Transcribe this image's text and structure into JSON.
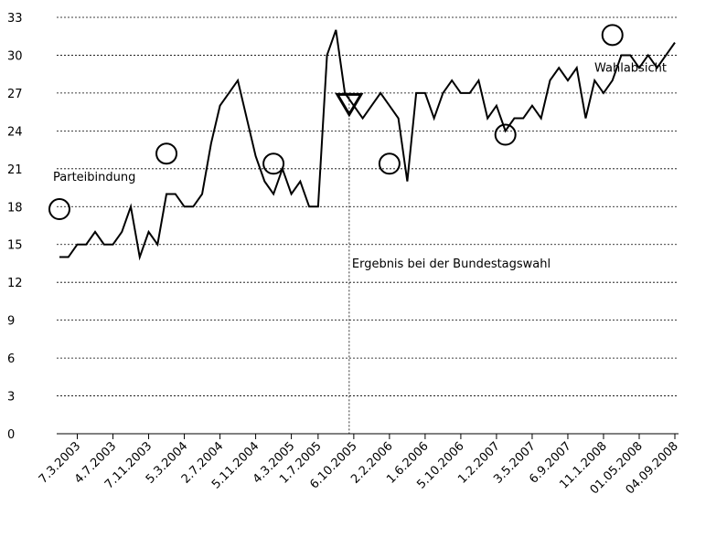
{
  "chart_data": {
    "type": "line",
    "categories": [
      null,
      null,
      "7.3.2003",
      null,
      null,
      null,
      "4.7.2003",
      null,
      null,
      null,
      "7.11.2003",
      null,
      null,
      null,
      "5.3.2004",
      null,
      null,
      null,
      "2.7.2004",
      null,
      null,
      null,
      "5.11.2004",
      null,
      null,
      null,
      "4.3.2005",
      null,
      null,
      "1.7.2005",
      null,
      null,
      null,
      "6.10.2005",
      null,
      null,
      null,
      "2.2.2006",
      null,
      null,
      null,
      "1.6.2006",
      null,
      null,
      null,
      "5.10.2006",
      null,
      null,
      null,
      "1.2.2007",
      null,
      null,
      null,
      "3.5.2007",
      null,
      null,
      null,
      "6.9.2007",
      null,
      null,
      null,
      "11.1.2008",
      null,
      null,
      null,
      "01.05.2008",
      null,
      null,
      null,
      "04.09.2008"
    ],
    "series": [
      {
        "name": "Wahlabsicht",
        "color": "#000000",
        "marker": "line",
        "values": [
          14,
          14,
          15,
          15,
          16,
          15,
          15,
          16,
          18,
          14,
          16,
          15,
          19,
          19,
          18,
          18,
          19,
          23,
          26,
          27,
          28,
          25,
          22,
          20,
          19,
          21,
          19,
          20,
          18,
          18,
          30,
          32,
          27,
          26,
          25,
          26,
          27,
          26,
          25,
          20,
          27,
          27,
          25,
          27,
          28,
          27,
          27,
          28,
          25,
          26,
          24,
          25,
          25,
          26,
          25,
          28,
          29,
          28,
          29,
          25,
          28,
          27,
          28,
          30,
          30,
          29,
          30,
          29,
          30,
          31
        ]
      },
      {
        "name": "Parteibindung",
        "color": "#000000",
        "marker": "circle",
        "values": [
          17.8,
          null,
          null,
          null,
          null,
          null,
          null,
          null,
          null,
          null,
          null,
          null,
          22.2,
          null,
          null,
          null,
          null,
          null,
          null,
          null,
          null,
          null,
          null,
          null,
          21.4,
          null,
          null,
          null,
          null,
          null,
          null,
          null,
          null,
          null,
          null,
          null,
          null,
          21.4,
          null,
          null,
          null,
          null,
          null,
          null,
          null,
          null,
          null,
          null,
          null,
          null,
          23.7,
          null,
          null,
          null,
          null,
          null,
          null,
          null,
          null,
          null,
          null,
          null,
          31.6,
          null,
          null,
          null,
          null,
          null,
          null,
          null
        ]
      },
      {
        "name": "Ergebnis bei der Bundestagswahl",
        "color": "#000000",
        "marker": "triangle",
        "values": [
          null,
          null,
          null,
          null,
          null,
          null,
          null,
          null,
          null,
          null,
          null,
          null,
          null,
          null,
          null,
          null,
          null,
          null,
          null,
          null,
          null,
          null,
          null,
          null,
          null,
          null,
          null,
          null,
          null,
          null,
          null,
          null,
          null,
          25.3,
          null,
          null,
          null,
          null,
          null,
          null,
          null,
          null,
          null,
          null,
          null,
          null,
          null,
          null,
          null,
          null,
          null,
          null,
          null,
          null,
          null,
          null,
          null,
          null,
          null,
          null,
          null,
          null,
          null,
          null,
          null,
          null,
          null,
          null,
          null,
          null
        ]
      }
    ],
    "ylim": [
      0,
      33
    ],
    "yticks": [
      0,
      3,
      6,
      9,
      12,
      15,
      18,
      21,
      24,
      27,
      30,
      33
    ],
    "grid": true
  }
}
